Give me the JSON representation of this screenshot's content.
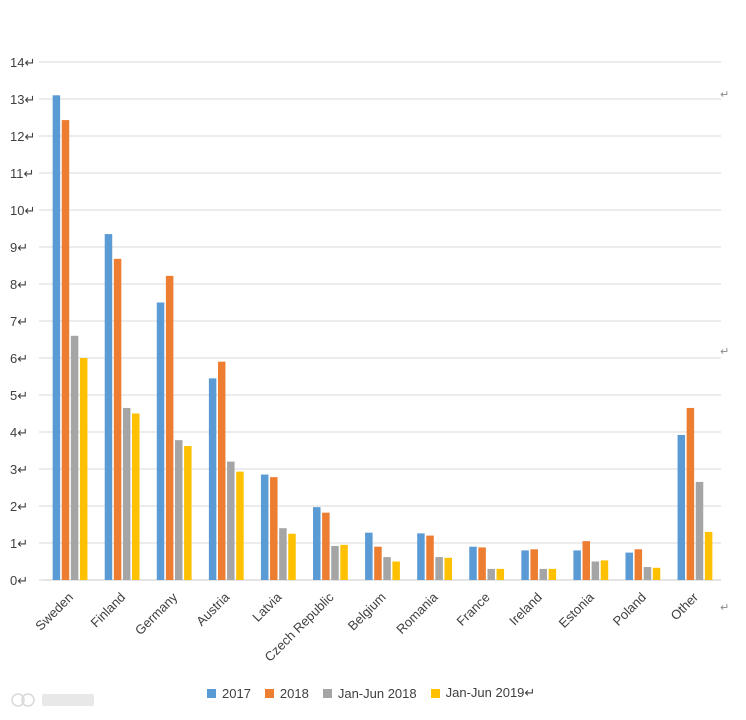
{
  "chart_data": {
    "type": "bar",
    "title": "",
    "xlabel": "",
    "ylabel": "",
    "ylim": [
      0,
      14
    ],
    "yticks": [
      0,
      1,
      2,
      3,
      4,
      5,
      6,
      7,
      8,
      9,
      10,
      11,
      12,
      13,
      14
    ],
    "grid": true,
    "legend_position": "bottom",
    "categories": [
      "Sweden",
      "Finland",
      "Germany",
      "Austria",
      "Latvia",
      "Czech Republic",
      "Belgium",
      "Romania",
      "France",
      "Ireland",
      "Estonia",
      "Poland",
      "Other"
    ],
    "series": [
      {
        "name": "2017",
        "color": "#5b9bd5",
        "values": [
          13.1,
          9.35,
          7.5,
          5.45,
          2.85,
          1.97,
          1.28,
          1.26,
          0.9,
          0.8,
          0.8,
          0.74,
          3.92
        ]
      },
      {
        "name": "2018",
        "color": "#ed7d31",
        "values": [
          12.43,
          8.68,
          8.22,
          5.9,
          2.78,
          1.82,
          0.9,
          1.2,
          0.88,
          0.83,
          1.05,
          0.83,
          4.65
        ]
      },
      {
        "name": "Jan-Jun 2018",
        "color": "#a5a5a5",
        "values": [
          6.6,
          4.65,
          3.78,
          3.2,
          1.4,
          0.92,
          0.62,
          0.62,
          0.3,
          0.3,
          0.5,
          0.35,
          2.65
        ]
      },
      {
        "name": "Jan-Jun 2019",
        "color": "#ffc000",
        "values": [
          6.0,
          4.5,
          3.62,
          2.93,
          1.25,
          0.95,
          0.5,
          0.6,
          0.3,
          0.3,
          0.53,
          0.33,
          1.3
        ]
      }
    ]
  },
  "ui": {
    "return_mark": "↵",
    "watermark_icon": "ai-logo-icon"
  }
}
